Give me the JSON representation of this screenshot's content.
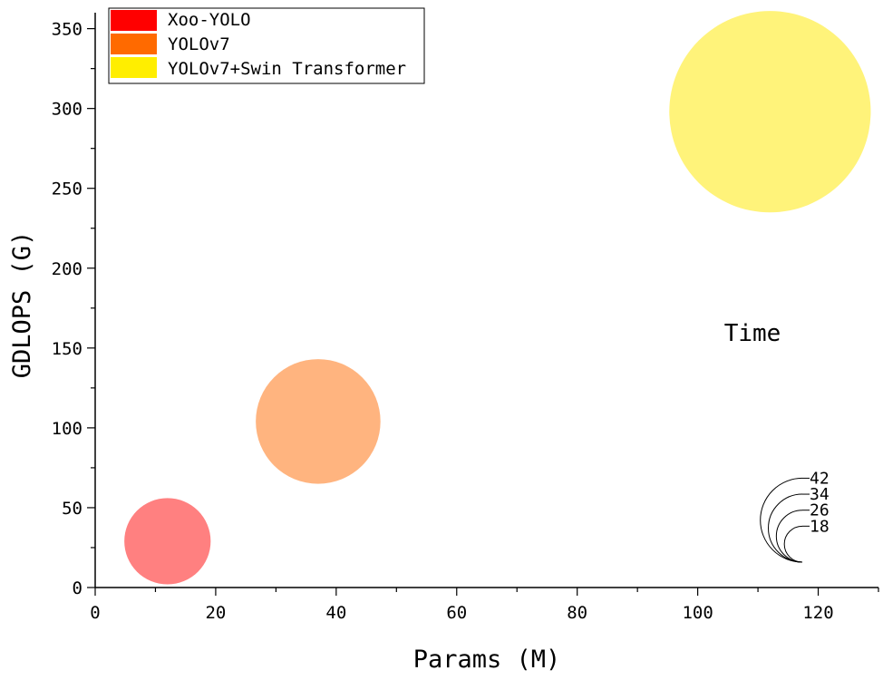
{
  "chart_data": {
    "type": "bubble",
    "xlabel": "Params (M)",
    "ylabel": "GDLOPS (G)",
    "xlim": [
      0,
      130
    ],
    "ylim": [
      0,
      360
    ],
    "x_ticks": [
      0,
      20,
      40,
      60,
      80,
      100,
      120
    ],
    "y_ticks": [
      0,
      50,
      100,
      150,
      200,
      250,
      300,
      350
    ],
    "grid": false,
    "legend_position": "top-left",
    "series": [
      {
        "name": "Xoo-YOLO",
        "x": 12,
        "y": 29,
        "time": 18,
        "legend_color": "#ff0000",
        "bubble_color": "#ff8080"
      },
      {
        "name": "YOLOv7",
        "x": 37,
        "y": 104,
        "time": 26,
        "legend_color": "#ff6a00",
        "bubble_color": "#ffb47f"
      },
      {
        "name": "YOLOv7+Swin Transformer",
        "x": 112,
        "y": 298,
        "time": 42,
        "legend_color": "#ffee00",
        "bubble_color": "#fff37a"
      }
    ],
    "size_legend": {
      "title": "Time",
      "values": [
        42,
        34,
        26,
        18
      ],
      "position": "right"
    }
  }
}
